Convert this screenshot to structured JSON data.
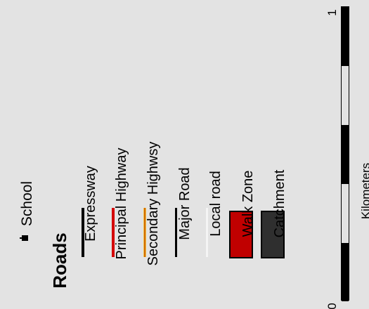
{
  "legend": {
    "school_label": "School",
    "roads_heading": "Roads",
    "items": [
      {
        "label": "Expressway",
        "color": "#000000"
      },
      {
        "label": "Principal Highway",
        "color": "#d40000"
      },
      {
        "label": "Secondary Highwsy",
        "color": "#e69a1e"
      },
      {
        "label": "Major Road",
        "color": "#000000"
      },
      {
        "label": "Local road",
        "color": "#ffffff"
      },
      {
        "label": "Walk Zone",
        "color": "#c00000"
      },
      {
        "label": "Catchment",
        "color": "#2f2f2f"
      }
    ]
  },
  "scale": {
    "label": "Kilometers",
    "tick_start": "0",
    "tick_end": "1"
  }
}
